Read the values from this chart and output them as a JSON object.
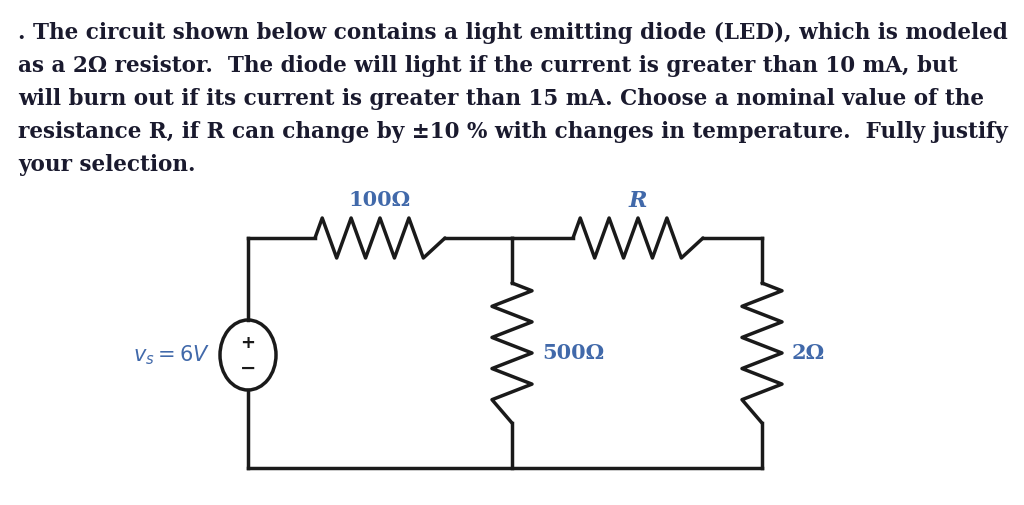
{
  "background_color": "#ffffff",
  "text_lines": [
    ". The circuit shown below contains a light emitting diode (LED), which is modeled",
    "as a 2Ω resistor.  The diode will light if the current is greater than 10 mA, but",
    "will burn out if its current is greater than 15 mA. Choose a nominal value of the",
    "resistance R, if R can change by ±10 % with changes in temperature.  Fully justify",
    "your selection."
  ],
  "text_color": "#1a1a2e",
  "label_color": "#4169aa",
  "label_100": "100Ω",
  "label_R": "R",
  "label_500": "500Ω",
  "label_2": "2Ω",
  "label_vs": "$v_s = 6V$",
  "circuit_color": "#1a1a1a",
  "figsize": [
    10.24,
    5.05
  ],
  "dpi": 100
}
